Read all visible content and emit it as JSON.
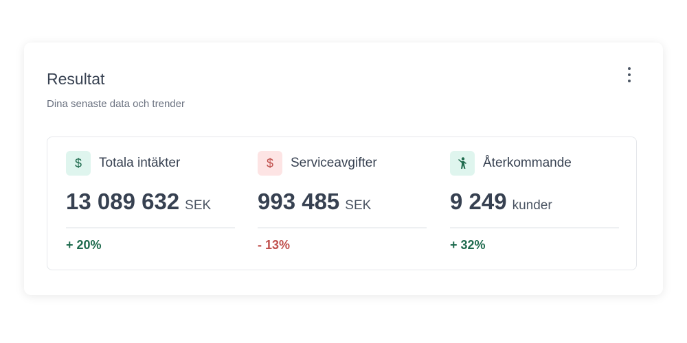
{
  "card": {
    "title": "Resultat",
    "subtitle": "Dina senaste data och trender",
    "stats": [
      {
        "icon": "$",
        "label": "Totala intäkter",
        "value": "13 089 632",
        "unit": "SEK",
        "change": "+ 20%"
      },
      {
        "icon": "$",
        "label": "Serviceavgifter",
        "value": "993 485",
        "unit": "SEK",
        "change": "- 13%"
      },
      {
        "label": "Återkommande",
        "value": "9 249",
        "unit": "kunder",
        "change": "+ 32%"
      }
    ]
  }
}
